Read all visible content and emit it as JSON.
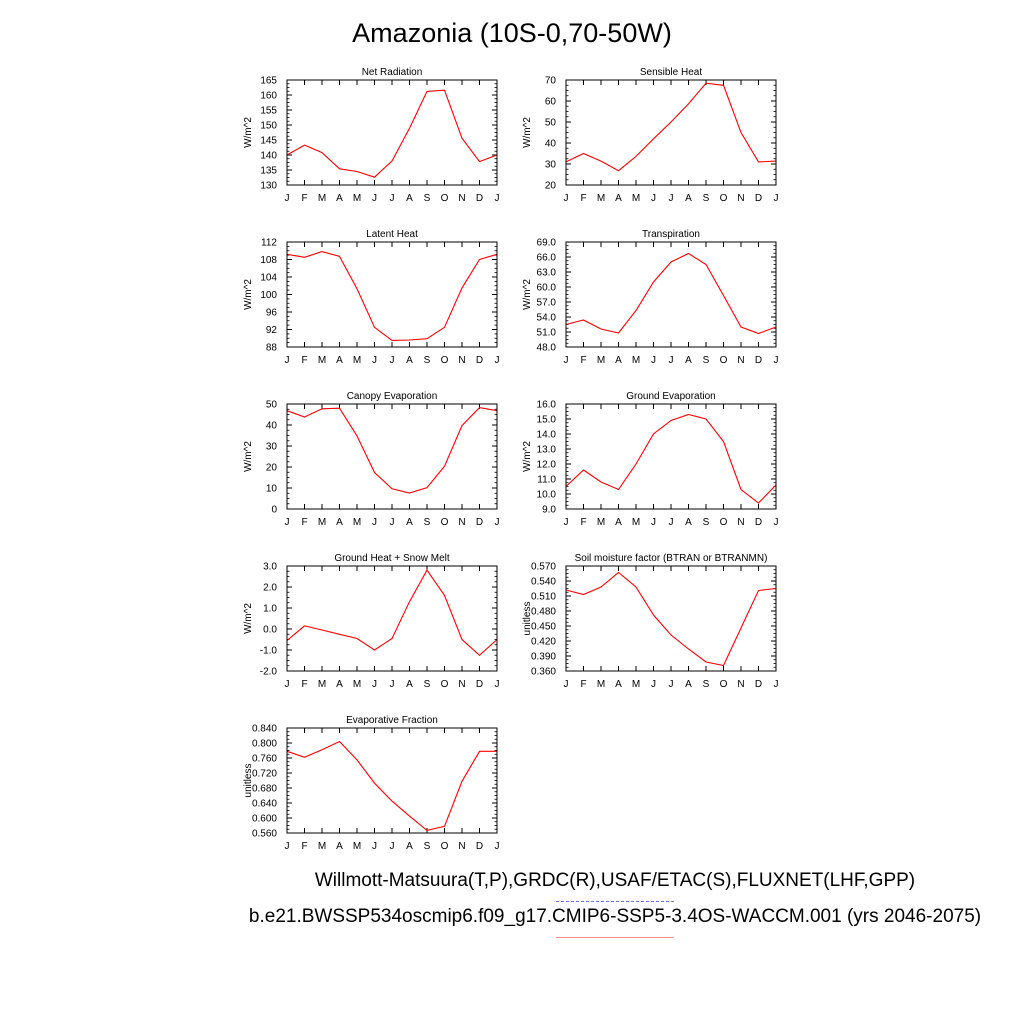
{
  "title": "Amazonia (10S-0,70-50W)",
  "legend": {
    "observations": "Willmott-Matsuura(T,P),GRDC(R),USAF/ETAC(S),FLUXNET(LHF,GPP)",
    "model": "b.e21.BWSSP534oscmip6.f09_g17.CMIP6-SSP5-3.4OS-WACCM.001 (yrs 2046-2075)",
    "observations_color": "#6f6ff0",
    "model_color": "#ff8a8a"
  },
  "chart_data": [
    {
      "type": "line",
      "title": "Net Radiation",
      "ylabel": "W/m^2",
      "x": [
        "J",
        "F",
        "M",
        "A",
        "M",
        "J",
        "J",
        "A",
        "S",
        "O",
        "N",
        "D",
        "J"
      ],
      "ylim": [
        130,
        165
      ],
      "yticks": [
        "130",
        "135",
        "140",
        "145",
        "150",
        "155",
        "160",
        "165"
      ],
      "values": [
        140.0,
        143.3,
        140.8,
        135.4,
        134.5,
        132.6,
        138.0,
        148.9,
        161.2,
        161.6,
        145.6,
        137.8,
        140.0
      ],
      "series_color": "#ff0000"
    },
    {
      "type": "line",
      "title": "Sensible Heat",
      "ylabel": "W/m^2",
      "x": [
        "J",
        "F",
        "M",
        "A",
        "M",
        "J",
        "J",
        "A",
        "S",
        "O",
        "N",
        "D",
        "J"
      ],
      "ylim": [
        20,
        70
      ],
      "yticks": [
        "20",
        "30",
        "40",
        "50",
        "60",
        "70"
      ],
      "values": [
        31.0,
        35.0,
        31.4,
        26.8,
        33.6,
        42.0,
        50.0,
        58.6,
        68.5,
        67.5,
        45.0,
        31.0,
        31.4
      ],
      "series_color": "#ff0000"
    },
    {
      "type": "line",
      "title": "Latent Heat",
      "ylabel": "W/m^2",
      "x": [
        "J",
        "F",
        "M",
        "A",
        "M",
        "J",
        "J",
        "A",
        "S",
        "O",
        "N",
        "D",
        "J"
      ],
      "ylim": [
        88,
        112
      ],
      "yticks": [
        "88",
        "92",
        "96",
        "100",
        "104",
        "108",
        "112"
      ],
      "values": [
        109.2,
        108.5,
        109.8,
        108.7,
        101.3,
        92.5,
        89.5,
        89.6,
        89.9,
        92.5,
        101.5,
        108.0,
        109.2
      ],
      "series_color": "#ff0000"
    },
    {
      "type": "line",
      "title": "Transpiration",
      "ylabel": "W/m^2",
      "x": [
        "J",
        "F",
        "M",
        "A",
        "M",
        "J",
        "J",
        "A",
        "S",
        "O",
        "N",
        "D",
        "J"
      ],
      "ylim": [
        48.0,
        69.0
      ],
      "yticks": [
        "48.0",
        "51.0",
        "54.0",
        "57.0",
        "60.0",
        "63.0",
        "66.0",
        "69.0"
      ],
      "values": [
        52.5,
        53.4,
        51.6,
        50.8,
        55.3,
        61.0,
        65.0,
        66.7,
        64.5,
        58.3,
        52.0,
        50.7,
        52.0
      ],
      "series_color": "#ff0000"
    },
    {
      "type": "line",
      "title": "Canopy Evaporation",
      "ylabel": "W/m^2",
      "x": [
        "J",
        "F",
        "M",
        "A",
        "M",
        "J",
        "J",
        "A",
        "S",
        "O",
        "N",
        "D",
        "J"
      ],
      "ylim": [
        0,
        50
      ],
      "yticks": [
        "0",
        "10",
        "20",
        "30",
        "40",
        "50"
      ],
      "values": [
        46.8,
        43.8,
        47.7,
        48.0,
        34.8,
        17.4,
        9.6,
        7.6,
        10.2,
        20.4,
        39.7,
        48.3,
        46.8
      ],
      "series_color": "#ff0000"
    },
    {
      "type": "line",
      "title": "Ground Evaporation",
      "ylabel": "W/m^2",
      "x": [
        "J",
        "F",
        "M",
        "A",
        "M",
        "J",
        "J",
        "A",
        "S",
        "O",
        "N",
        "D",
        "J"
      ],
      "ylim": [
        9.0,
        16.0
      ],
      "yticks": [
        "9.0",
        "10.0",
        "11.0",
        "12.0",
        "13.0",
        "14.0",
        "15.0",
        "16.0"
      ],
      "values": [
        10.5,
        11.6,
        10.8,
        10.3,
        12.0,
        14.0,
        14.9,
        15.3,
        15.0,
        13.5,
        10.3,
        9.4,
        10.6
      ],
      "series_color": "#ff0000"
    },
    {
      "type": "line",
      "title": "Ground Heat + Snow Melt",
      "ylabel": "W/m^2",
      "x": [
        "J",
        "F",
        "M",
        "A",
        "M",
        "J",
        "J",
        "A",
        "S",
        "O",
        "N",
        "D",
        "J"
      ],
      "ylim": [
        -2.0,
        3.0
      ],
      "yticks": [
        "-2.0",
        "-1.0",
        "0.0",
        "1.0",
        "2.0",
        "3.0"
      ],
      "values": [
        -0.55,
        0.15,
        -0.05,
        -0.25,
        -0.45,
        -1.0,
        -0.45,
        1.3,
        2.8,
        1.6,
        -0.5,
        -1.25,
        -0.5
      ],
      "series_color": "#ff0000"
    },
    {
      "type": "line",
      "title": "Soil moisture factor (BTRAN or BTRANMN)",
      "ylabel": "unitless",
      "x": [
        "J",
        "F",
        "M",
        "A",
        "M",
        "J",
        "J",
        "A",
        "S",
        "O",
        "N",
        "D",
        "J"
      ],
      "ylim": [
        0.36,
        0.57
      ],
      "yticks": [
        "0.360",
        "0.390",
        "0.420",
        "0.450",
        "0.480",
        "0.510",
        "0.540",
        "0.570"
      ],
      "values": [
        0.522,
        0.513,
        0.528,
        0.557,
        0.528,
        0.472,
        0.432,
        0.404,
        0.378,
        0.371,
        0.446,
        0.521,
        0.525
      ],
      "series_color": "#ff0000"
    },
    {
      "type": "line",
      "title": "Evaporative Fraction",
      "ylabel": "unitless",
      "x": [
        "J",
        "F",
        "M",
        "A",
        "M",
        "J",
        "J",
        "A",
        "S",
        "O",
        "N",
        "D",
        "J"
      ],
      "ylim": [
        0.56,
        0.84
      ],
      "yticks": [
        "0.560",
        "0.600",
        "0.640",
        "0.680",
        "0.720",
        "0.760",
        "0.800",
        "0.840"
      ],
      "values": [
        0.778,
        0.762,
        0.782,
        0.804,
        0.755,
        0.693,
        0.645,
        0.605,
        0.567,
        0.578,
        0.698,
        0.778,
        0.778
      ],
      "series_color": "#ff0000"
    }
  ]
}
